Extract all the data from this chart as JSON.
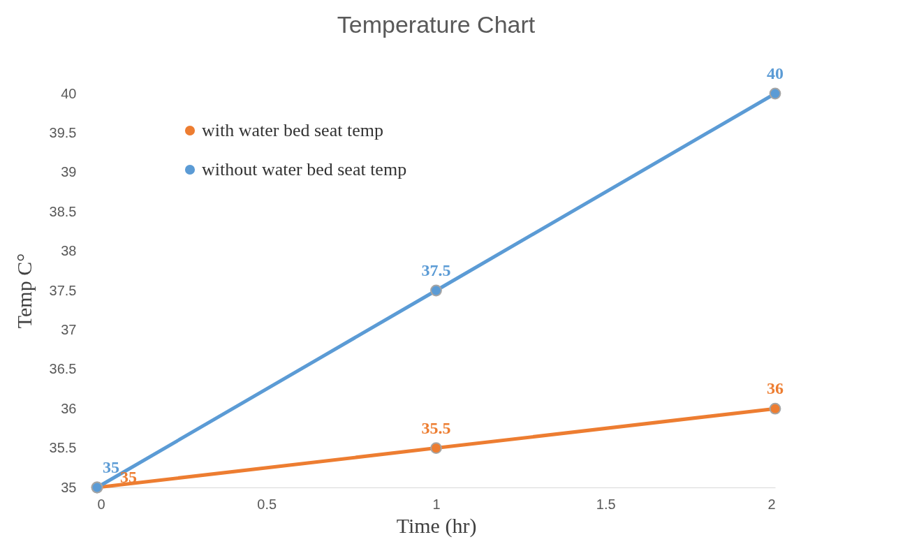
{
  "chart_data": {
    "type": "line",
    "title": "Temperature Chart",
    "xlabel": "Time (hr)",
    "ylabel": "Temp C°",
    "x": [
      0,
      1,
      2
    ],
    "series": [
      {
        "name": "with water bed seat temp",
        "color": "#ed7d31",
        "values": [
          35,
          35.5,
          36
        ]
      },
      {
        "name": "without water bed seat temp",
        "color": "#5b9bd5",
        "values": [
          35,
          37.5,
          40
        ]
      }
    ],
    "xlim": [
      0,
      2
    ],
    "xticks": [
      0,
      0.5,
      1,
      1.5,
      2
    ],
    "ylim": [
      35,
      40
    ],
    "yticks": [
      35,
      35.5,
      36,
      36.5,
      37,
      37.5,
      38,
      38.5,
      39,
      39.5,
      40
    ],
    "grid": false,
    "legend": "top left",
    "marker": "circle",
    "line_style": "solid",
    "data_labels": true
  }
}
